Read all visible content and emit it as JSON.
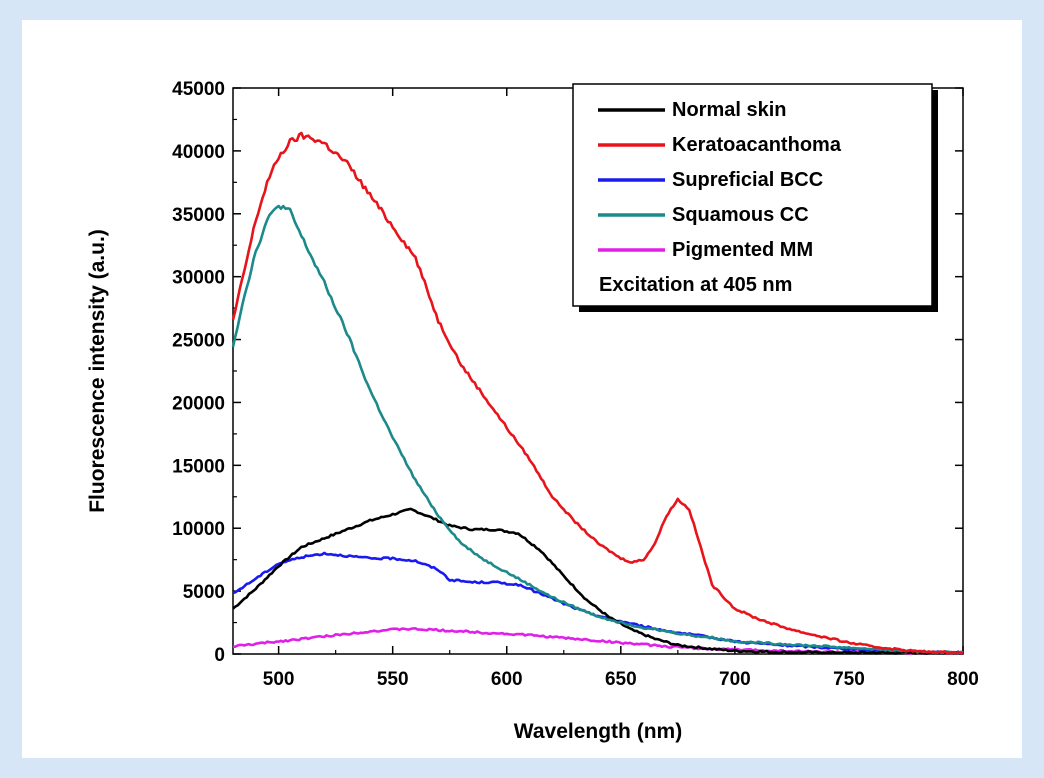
{
  "chart_data": {
    "type": "line",
    "xlabel": "Wavelength (nm)",
    "ylabel": "Fluorescence intensity (a.u.)",
    "xlim": [
      480,
      800
    ],
    "ylim": [
      0,
      45000
    ],
    "x_ticks": [
      500,
      550,
      600,
      650,
      700,
      750,
      800
    ],
    "y_ticks": [
      0,
      5000,
      10000,
      15000,
      20000,
      25000,
      30000,
      35000,
      40000,
      45000
    ],
    "grid": false,
    "legend_position": "top-right",
    "annotation": "Excitation at 405 nm",
    "series": [
      {
        "name": "Normal skin",
        "color": "#000000",
        "points": [
          [
            480,
            3600
          ],
          [
            490,
            5200
          ],
          [
            500,
            7000
          ],
          [
            510,
            8500
          ],
          [
            520,
            9200
          ],
          [
            530,
            9900
          ],
          [
            540,
            10600
          ],
          [
            550,
            11100
          ],
          [
            558,
            11500
          ],
          [
            565,
            11000
          ],
          [
            575,
            10200
          ],
          [
            585,
            9900
          ],
          [
            595,
            9900
          ],
          [
            605,
            9600
          ],
          [
            615,
            8200
          ],
          [
            625,
            6200
          ],
          [
            635,
            4300
          ],
          [
            645,
            2900
          ],
          [
            655,
            1900
          ],
          [
            665,
            1200
          ],
          [
            675,
            700
          ],
          [
            690,
            400
          ],
          [
            700,
            250
          ],
          [
            720,
            150
          ],
          [
            750,
            100
          ],
          [
            780,
            100
          ],
          [
            800,
            100
          ]
        ]
      },
      {
        "name": "Keratoacanthoma",
        "color": "#e8141b",
        "points": [
          [
            480,
            26500
          ],
          [
            485,
            30500
          ],
          [
            490,
            34500
          ],
          [
            495,
            37500
          ],
          [
            500,
            39500
          ],
          [
            505,
            40700
          ],
          [
            510,
            41200
          ],
          [
            515,
            41000
          ],
          [
            520,
            40600
          ],
          [
            530,
            39000
          ],
          [
            540,
            36500
          ],
          [
            550,
            34000
          ],
          [
            560,
            31500
          ],
          [
            570,
            26500
          ],
          [
            580,
            23000
          ],
          [
            590,
            20500
          ],
          [
            600,
            18000
          ],
          [
            610,
            15500
          ],
          [
            620,
            12500
          ],
          [
            630,
            10500
          ],
          [
            640,
            8800
          ],
          [
            650,
            7600
          ],
          [
            655,
            7300
          ],
          [
            660,
            7500
          ],
          [
            665,
            8800
          ],
          [
            670,
            11000
          ],
          [
            675,
            12300
          ],
          [
            680,
            11500
          ],
          [
            685,
            8500
          ],
          [
            690,
            5500
          ],
          [
            700,
            3600
          ],
          [
            710,
            2800
          ],
          [
            720,
            2200
          ],
          [
            730,
            1700
          ],
          [
            740,
            1300
          ],
          [
            750,
            900
          ],
          [
            760,
            600
          ],
          [
            770,
            400
          ],
          [
            780,
            200
          ],
          [
            790,
            150
          ],
          [
            800,
            100
          ]
        ]
      },
      {
        "name": "Supreficial BCC",
        "color": "#1a1af0",
        "points": [
          [
            480,
            4800
          ],
          [
            490,
            6000
          ],
          [
            500,
            7200
          ],
          [
            510,
            7700
          ],
          [
            520,
            8000
          ],
          [
            530,
            7800
          ],
          [
            540,
            7600
          ],
          [
            550,
            7600
          ],
          [
            560,
            7400
          ],
          [
            570,
            6700
          ],
          [
            575,
            5900
          ],
          [
            585,
            5700
          ],
          [
            595,
            5700
          ],
          [
            605,
            5500
          ],
          [
            615,
            4800
          ],
          [
            625,
            4000
          ],
          [
            635,
            3300
          ],
          [
            645,
            2800
          ],
          [
            655,
            2400
          ],
          [
            665,
            2000
          ],
          [
            675,
            1700
          ],
          [
            690,
            1300
          ],
          [
            700,
            1000
          ],
          [
            720,
            700
          ],
          [
            740,
            500
          ],
          [
            760,
            300
          ],
          [
            780,
            200
          ],
          [
            800,
            100
          ]
        ]
      },
      {
        "name": "Squamous CC",
        "color": "#1c8a8a",
        "points": [
          [
            480,
            24500
          ],
          [
            485,
            28500
          ],
          [
            490,
            32000
          ],
          [
            495,
            34500
          ],
          [
            500,
            35700
          ],
          [
            505,
            35200
          ],
          [
            510,
            33200
          ],
          [
            520,
            29500
          ],
          [
            530,
            25500
          ],
          [
            540,
            21000
          ],
          [
            550,
            17200
          ],
          [
            560,
            13800
          ],
          [
            570,
            11000
          ],
          [
            580,
            8800
          ],
          [
            590,
            7500
          ],
          [
            600,
            6500
          ],
          [
            610,
            5500
          ],
          [
            620,
            4500
          ],
          [
            630,
            3700
          ],
          [
            640,
            3000
          ],
          [
            650,
            2500
          ],
          [
            660,
            2100
          ],
          [
            670,
            1800
          ],
          [
            680,
            1500
          ],
          [
            690,
            1300
          ],
          [
            700,
            1000
          ],
          [
            720,
            800
          ],
          [
            740,
            600
          ],
          [
            760,
            400
          ],
          [
            780,
            200
          ],
          [
            800,
            100
          ]
        ]
      },
      {
        "name": "Pigmented MM",
        "color": "#e020e8",
        "points": [
          [
            480,
            600
          ],
          [
            500,
            1000
          ],
          [
            520,
            1400
          ],
          [
            540,
            1800
          ],
          [
            555,
            2000
          ],
          [
            570,
            1900
          ],
          [
            590,
            1700
          ],
          [
            610,
            1500
          ],
          [
            630,
            1200
          ],
          [
            650,
            900
          ],
          [
            670,
            600
          ],
          [
            690,
            400
          ],
          [
            710,
            300
          ],
          [
            730,
            200
          ],
          [
            750,
            150
          ],
          [
            780,
            100
          ],
          [
            800,
            100
          ]
        ]
      }
    ]
  }
}
